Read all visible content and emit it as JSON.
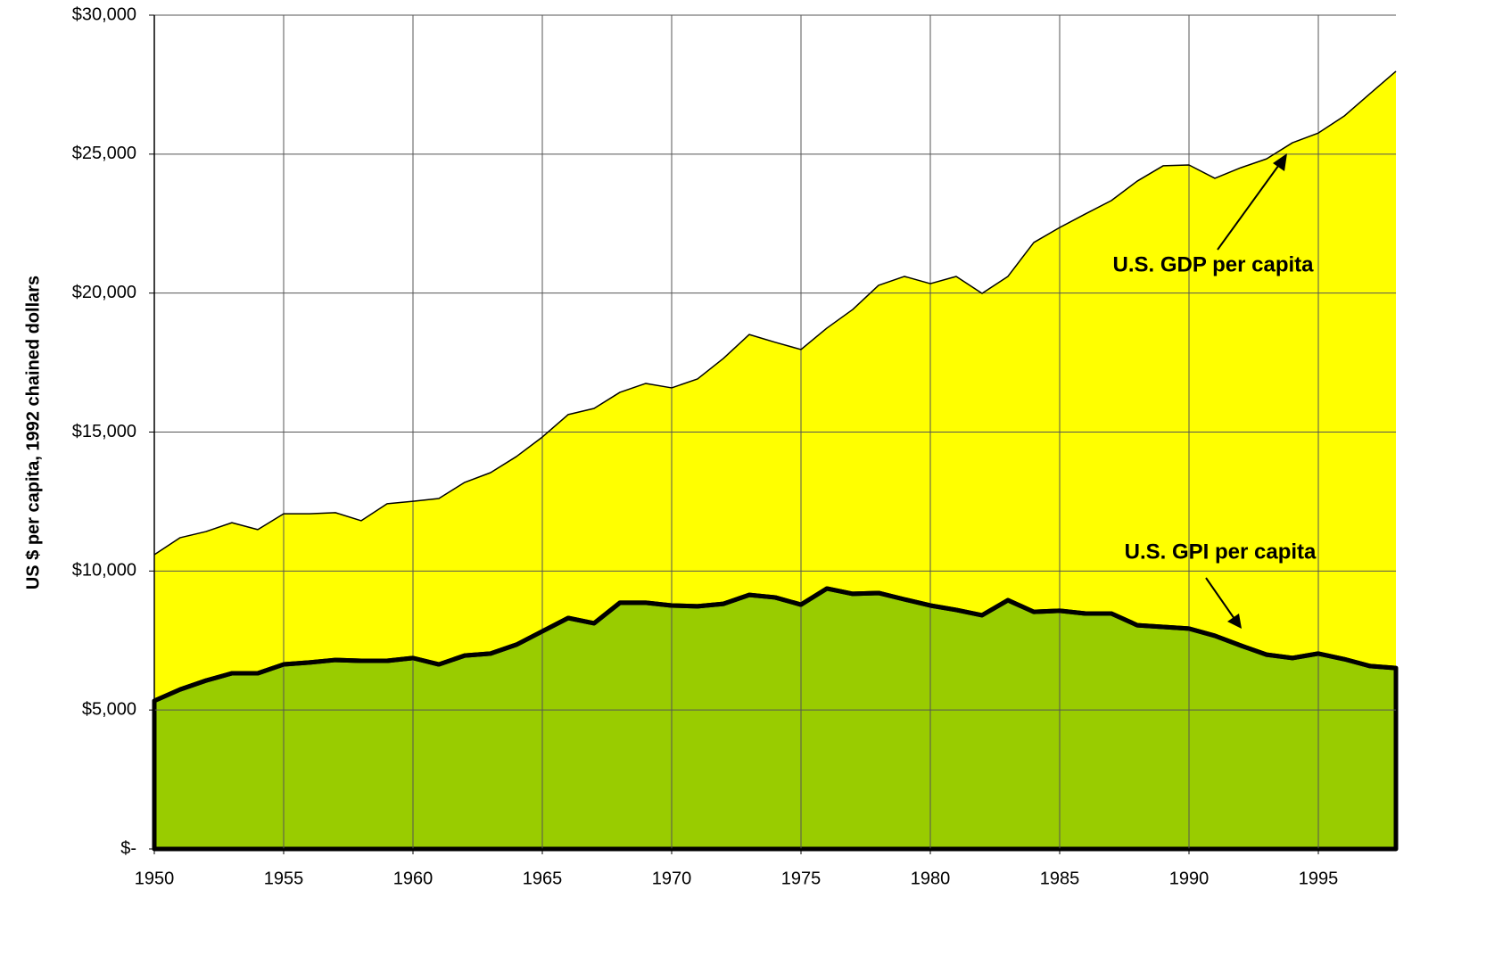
{
  "chart_data": {
    "type": "area",
    "y_label": "US $ per capita, 1992 chained dollars",
    "x": [
      1950,
      1951,
      1952,
      1953,
      1954,
      1955,
      1956,
      1957,
      1958,
      1959,
      1960,
      1961,
      1962,
      1963,
      1964,
      1965,
      1966,
      1967,
      1968,
      1969,
      1970,
      1971,
      1972,
      1973,
      1974,
      1975,
      1976,
      1977,
      1978,
      1979,
      1980,
      1981,
      1982,
      1983,
      1984,
      1985,
      1986,
      1987,
      1988,
      1989,
      1990,
      1991,
      1992,
      1993,
      1994,
      1995,
      1996,
      1997,
      1998
    ],
    "series": [
      {
        "name": "U.S. GDP per capita",
        "color": "#ffff00",
        "values": [
          10590,
          11200,
          11420,
          11740,
          11490,
          12060,
          12060,
          12100,
          11810,
          12420,
          12510,
          12610,
          13190,
          13540,
          14120,
          14820,
          15630,
          15850,
          16430,
          16750,
          16590,
          16910,
          17650,
          18510,
          18230,
          17970,
          18740,
          19410,
          20280,
          20600,
          20340,
          20600,
          19990,
          20600,
          21820,
          22360,
          22850,
          23330,
          24030,
          24580,
          24610,
          24130,
          24510,
          24830,
          25410,
          25760,
          26370,
          27180,
          27980
        ]
      },
      {
        "name": "U.S. GPI per capita",
        "color": "#99cc00",
        "values": [
          5330,
          5740,
          6060,
          6320,
          6320,
          6640,
          6710,
          6800,
          6770,
          6770,
          6870,
          6640,
          6960,
          7030,
          7350,
          7830,
          8310,
          8120,
          8860,
          8860,
          8760,
          8730,
          8820,
          9140,
          9050,
          8790,
          9370,
          9180,
          9210,
          8980,
          8760,
          8600,
          8410,
          8950,
          8530,
          8570,
          8470,
          8470,
          8050,
          7990,
          7930,
          7670,
          7320,
          6990,
          6870,
          7030,
          6830,
          6580,
          6510
        ]
      }
    ],
    "xlim": [
      1950,
      1998
    ],
    "xticks": [
      1950,
      1955,
      1960,
      1965,
      1970,
      1975,
      1980,
      1985,
      1990,
      1995
    ],
    "ylim": [
      0,
      30000
    ],
    "yticks": [
      {
        "value": 0,
        "label": "$-"
      },
      {
        "value": 5000,
        "label": "$5,000"
      },
      {
        "value": 10000,
        "label": "$10,000"
      },
      {
        "value": 15000,
        "label": "$15,000"
      },
      {
        "value": 20000,
        "label": "$20,000"
      },
      {
        "value": 25000,
        "label": "$25,000"
      },
      {
        "value": 30000,
        "label": "$30,000"
      }
    ],
    "grid": true
  }
}
